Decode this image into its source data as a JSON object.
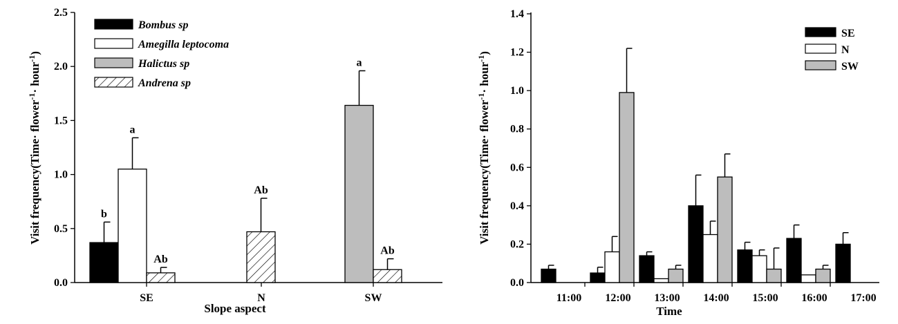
{
  "chart_data": [
    {
      "type": "bar",
      "xlabel": "Slope aspect",
      "ylabel": "Visit frequency(Time· flower",
      "ylabel_sup1": "-1",
      "ylabel_mid": "· hour",
      "ylabel_sup2": "-1",
      "ylabel_end": ")",
      "ylim": [
        0,
        2.5
      ],
      "yticks": [
        "0.0",
        "0.5",
        "1.0",
        "1.5",
        "2.0",
        "2.5"
      ],
      "legend_position": "top-left",
      "categories": [
        "SE",
        "N",
        "SW"
      ],
      "series": [
        {
          "name": "Bombus sp",
          "fill": "#000000",
          "pattern": "solid",
          "values": [
            0.37,
            null,
            null
          ],
          "errors": [
            0.19,
            null,
            null
          ],
          "labels": [
            "b",
            "",
            ""
          ]
        },
        {
          "name": "Amegilla leptocoma",
          "fill": "#ffffff",
          "pattern": "solid",
          "values": [
            1.05,
            null,
            null
          ],
          "errors": [
            0.29,
            null,
            null
          ],
          "labels": [
            "a",
            "",
            ""
          ]
        },
        {
          "name": "Halictus sp",
          "fill": "#bdbdbd",
          "pattern": "solid",
          "values": [
            null,
            null,
            1.64
          ],
          "errors": [
            null,
            null,
            0.32
          ],
          "labels": [
            "",
            "",
            "a"
          ]
        },
        {
          "name": "Andrena sp",
          "fill": "#ffffff",
          "pattern": "hatch",
          "values": [
            0.09,
            0.47,
            0.12
          ],
          "errors": [
            0.05,
            0.31,
            0.1
          ],
          "labels": [
            "Ab",
            "Ab",
            "Ab"
          ]
        }
      ]
    },
    {
      "type": "bar",
      "xlabel": "Time",
      "ylabel": "Visit frequency(Time· flower",
      "ylabel_sup1": "-1",
      "ylabel_mid": "· hour",
      "ylabel_sup2": "-1",
      "ylabel_end": ")",
      "ylim": [
        0,
        1.4
      ],
      "yticks": [
        "0.0",
        "0.2",
        "0.4",
        "0.6",
        "0.8",
        "1.0",
        "1.2",
        "1.4"
      ],
      "legend_position": "top-right",
      "categories": [
        "11:00",
        "12:00",
        "13:00",
        "14:00",
        "15:00",
        "16:00",
        "17:00"
      ],
      "series": [
        {
          "name": "SE",
          "fill": "#000000",
          "values": [
            0.07,
            0.05,
            0.14,
            0.4,
            0.17,
            0.23,
            0.2
          ],
          "errors": [
            0.02,
            0.03,
            0.02,
            0.16,
            0.04,
            0.07,
            0.06
          ]
        },
        {
          "name": "N",
          "fill": "#ffffff",
          "values": [
            0.0,
            0.16,
            0.02,
            0.25,
            0.14,
            0.04,
            0.0
          ],
          "errors": [
            0,
            0.08,
            0,
            0.07,
            0.03,
            0,
            0
          ]
        },
        {
          "name": "SW",
          "fill": "#bdbdbd",
          "values": [
            0.0,
            0.99,
            0.07,
            0.55,
            0.07,
            0.07,
            0.0
          ],
          "errors": [
            0,
            0.23,
            0.02,
            0.12,
            0.11,
            0.02,
            0
          ]
        }
      ]
    }
  ]
}
